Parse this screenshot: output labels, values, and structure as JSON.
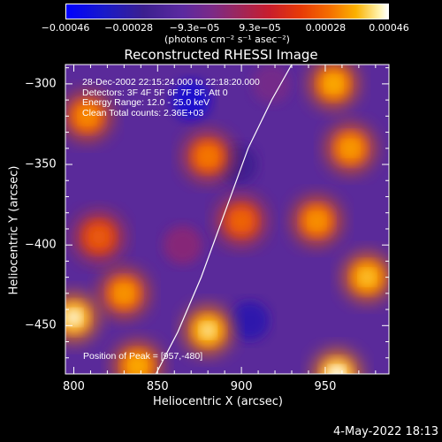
{
  "chart_data": {
    "type": "heatmap",
    "title": "Reconstructed RHESSI Image",
    "xlabel": "Heliocentric X (arcsec)",
    "ylabel": "Heliocentric Y (arcsec)",
    "xlim": [
      795,
      988
    ],
    "ylim": [
      -480,
      -288
    ],
    "x_ticks": [
      800,
      850,
      900,
      950
    ],
    "y_ticks": [
      -300,
      -350,
      -400,
      -450
    ],
    "x_tick_labels": [
      "800",
      "850",
      "900",
      "950"
    ],
    "y_tick_labels": [
      "−300",
      "−350",
      "−400",
      "−450"
    ],
    "colorbar": {
      "range": [
        -0.00046,
        0.00046
      ],
      "tick_values": [
        -0.00046,
        -0.00028,
        -9.3e-05,
        9.3e-05,
        0.00028,
        0.00046
      ],
      "tick_labels": [
        "−0.00046",
        "−0.00028",
        "−9.3e−05",
        "9.3e−05",
        "0.00028",
        "0.00046"
      ],
      "unit": "(photons cm⁻² s⁻¹ asec⁻²)",
      "colors": [
        "#0000ff",
        "#3b1f8f",
        "#7a2a88",
        "#c81d2d",
        "#f46f00",
        "#fbb100",
        "#ffffff"
      ]
    },
    "annotations": {
      "time_range": "28-Dec-2002 22:15:24.000 to 22:18:20.000",
      "detectors": "Detectors: 3F 4F 5F 6F 7F 8F, Att 0",
      "energy_range": "Energy Range: 12.0 - 25.0 keV",
      "method_counts": "Clean    Total counts: 2.36E+03",
      "peak_position": "Position of Peak = [957,-480]"
    },
    "limb_curve": {
      "x": [
        849,
        862,
        876,
        890,
        904,
        918,
        930
      ],
      "y": [
        -480,
        -454,
        -420,
        -380,
        -340,
        -310,
        -288
      ]
    },
    "bright_regions": [
      {
        "x": 808,
        "y": -320,
        "value": 0.00022
      },
      {
        "x": 815,
        "y": -395,
        "value": 0.00012
      },
      {
        "x": 830,
        "y": -430,
        "value": 0.00025
      },
      {
        "x": 800,
        "y": -445,
        "value": 0.00044
      },
      {
        "x": 838,
        "y": -475,
        "value": 0.0003
      },
      {
        "x": 880,
        "y": -345,
        "value": 0.00018
      },
      {
        "x": 880,
        "y": -453,
        "value": 0.0004
      },
      {
        "x": 900,
        "y": -385,
        "value": 0.00014
      },
      {
        "x": 955,
        "y": -300,
        "value": 0.0003
      },
      {
        "x": 965,
        "y": -340,
        "value": 0.00026
      },
      {
        "x": 945,
        "y": -385,
        "value": 0.00024
      },
      {
        "x": 975,
        "y": -420,
        "value": 0.00034
      },
      {
        "x": 957,
        "y": -480,
        "value": 0.00046
      }
    ],
    "dim_regions": [
      {
        "x": 870,
        "y": -310,
        "value": -0.0004
      },
      {
        "x": 898,
        "y": -350,
        "value": -0.0003
      },
      {
        "x": 905,
        "y": -447,
        "value": -0.00035
      },
      {
        "x": 865,
        "y": -400,
        "value": -0.00012
      },
      {
        "x": 918,
        "y": -300,
        "value": -0.00016
      }
    ],
    "grid": false
  },
  "timestamp": "4-May-2022 18:13"
}
